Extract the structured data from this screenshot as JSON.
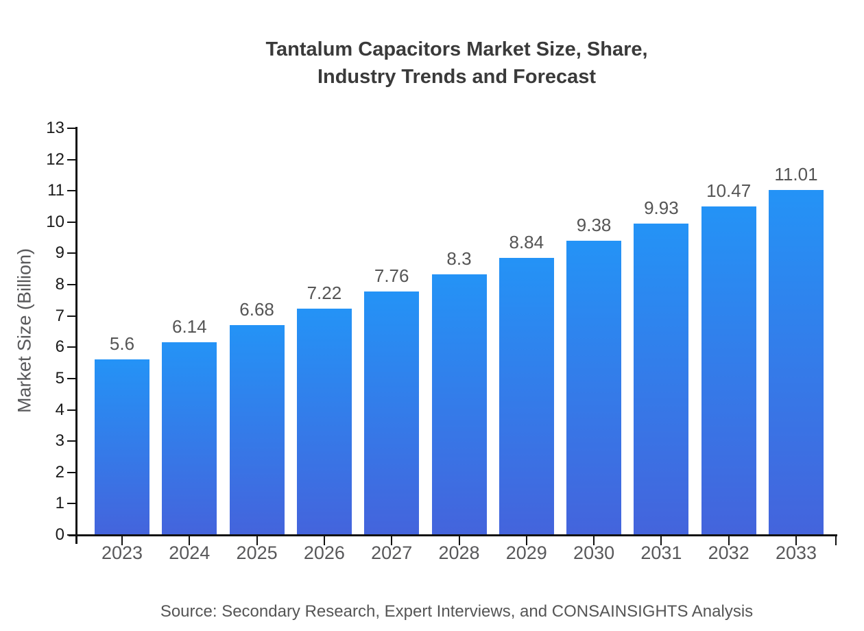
{
  "chart_data": {
    "type": "bar",
    "title": "Tantalum Capacitors Market Size, Share,\nIndustry Trends and Forecast",
    "ylabel": "Market Size (Billion)",
    "xlabel": "",
    "categories": [
      "2023",
      "2024",
      "2025",
      "2026",
      "2027",
      "2028",
      "2029",
      "2030",
      "2031",
      "2032",
      "2033"
    ],
    "values": [
      5.6,
      6.14,
      6.68,
      7.22,
      7.76,
      8.3,
      8.84,
      9.38,
      9.93,
      10.47,
      11.01
    ],
    "value_labels": [
      "5.6",
      "6.14",
      "6.68",
      "7.22",
      "7.76",
      "8.3",
      "8.84",
      "9.38",
      "9.93",
      "10.47",
      "11.01"
    ],
    "ylim": [
      0,
      13
    ],
    "ytick_step": 1,
    "grid": "off",
    "legend": "none",
    "source": "Source: Secondary Research, Expert Interviews, and CONSAINSIGHTS Analysis",
    "colors": {
      "bar_gradient_top": "#2493f6",
      "bar_gradient_bottom": "#4464dc",
      "axis": "#111111",
      "tick_label": "#1a1a1a",
      "category_label": "#58585a",
      "value_label": "#555555",
      "title": "#3a3a3a"
    }
  }
}
